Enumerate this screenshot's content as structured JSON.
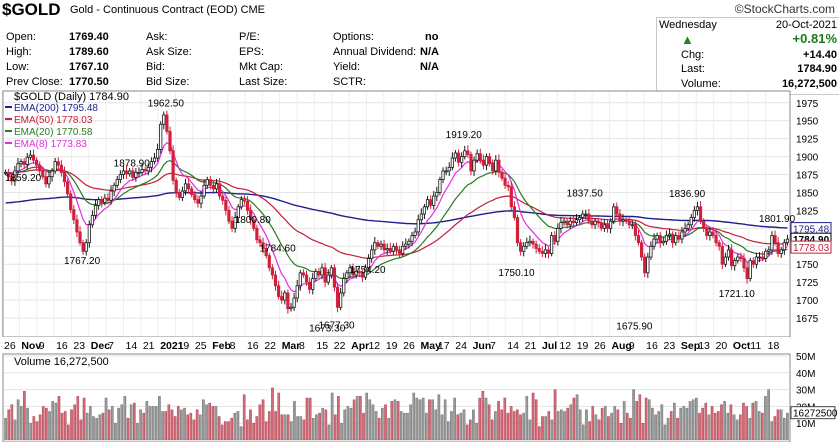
{
  "header": {
    "symbol": "$GOLD",
    "name": "Gold - Continuous Contract (EOD)",
    "exchange": "CME",
    "logo": "©StockCharts.com"
  },
  "quote_fields": [
    {
      "label": "Open:",
      "value": "1769.40"
    },
    {
      "label": "High:",
      "value": "1789.60"
    },
    {
      "label": "Low:",
      "value": "1767.10"
    },
    {
      "label": "Prev Close:",
      "value": "1770.50"
    },
    {
      "label": "Ask:",
      "value": ""
    },
    {
      "label": "Ask Size:",
      "value": ""
    },
    {
      "label": "Bid:",
      "value": ""
    },
    {
      "label": "Bid Size:",
      "value": ""
    },
    {
      "label": "P/E:",
      "value": ""
    },
    {
      "label": "EPS:",
      "value": ""
    },
    {
      "label": "Mkt Cap:",
      "value": ""
    },
    {
      "label": "Last Size:",
      "value": ""
    },
    {
      "label": "Options:",
      "value": "no"
    },
    {
      "label": "Annual Dividend:",
      "value": "N/A"
    },
    {
      "label": "Yield:",
      "value": "N/A"
    },
    {
      "label": "SCTR:",
      "value": ""
    }
  ],
  "summary": {
    "day": "Wednesday",
    "date": "20-Oct-2021",
    "change_pct": "+0.81%",
    "chg_label": "Chg:",
    "chg": "+14.40",
    "last_label": "Last:",
    "last": "1784.90",
    "volume_label": "Volume:",
    "volume": "16,272,500"
  },
  "colors": {
    "up": "#1a1a1a",
    "down": "#d0203c",
    "vol_down": "#d46a78",
    "vol_up": "#9a9a9a",
    "ema200": "#1e1e8c",
    "ema50": "#c41e3a",
    "ema20": "#2a7a1e",
    "ema8": "#e030e0"
  },
  "chart_data": [
    {
      "type": "line",
      "title": "$GOLD (Daily) 1784.90",
      "ylim": [
        1650,
        1990
      ],
      "yticks": [
        1675,
        1700,
        1725,
        1750,
        1775,
        1800,
        1825,
        1850,
        1875,
        1900,
        1925,
        1950,
        1975
      ],
      "x_ticks": [
        "26",
        "Nov",
        "9",
        "16",
        "23",
        "Dec",
        "7",
        "14",
        "21",
        "2021",
        "19",
        "25",
        "Feb",
        "8",
        "16",
        "22",
        "Mar",
        "8",
        "15",
        "22",
        "Apr",
        "12",
        "19",
        "26",
        "May",
        "17",
        "24",
        "Jun",
        "7",
        "14",
        "21",
        "Jul",
        "12",
        "19",
        "26",
        "Aug",
        "9",
        "16",
        "23",
        "Sep",
        "13",
        "20",
        "Oct",
        "11",
        "18"
      ],
      "legend": [
        {
          "label": "EMA(200) 1795.48",
          "color": "#1e1e8c"
        },
        {
          "label": "EMA(50) 1778.03",
          "color": "#c41e3a"
        },
        {
          "label": "EMA(20) 1770.58",
          "color": "#2a7a1e"
        },
        {
          "label": "EMA(8) 1773.83",
          "color": "#e030e0"
        }
      ],
      "close": [
        1878,
        1872,
        1866,
        1880,
        1890,
        1893,
        1889,
        1899,
        1902,
        1895,
        1888,
        1880,
        1872,
        1862,
        1872,
        1880,
        1893,
        1888,
        1878,
        1865,
        1848,
        1826,
        1812,
        1795,
        1780,
        1768,
        1780,
        1805,
        1818,
        1832,
        1840,
        1836,
        1842,
        1839,
        1852,
        1860,
        1868,
        1875,
        1880,
        1876,
        1880,
        1871,
        1878,
        1878,
        1882,
        1880,
        1885,
        1893,
        1898,
        1910,
        1945,
        1958,
        1935,
        1908,
        1867,
        1850,
        1843,
        1852,
        1862,
        1855,
        1847,
        1840,
        1835,
        1845,
        1860,
        1868,
        1860,
        1855,
        1862,
        1845,
        1839,
        1825,
        1810,
        1800,
        1815,
        1830,
        1840,
        1838,
        1825,
        1812,
        1800,
        1784,
        1780,
        1772,
        1762,
        1745,
        1735,
        1720,
        1705,
        1700,
        1710,
        1688,
        1690,
        1703,
        1720,
        1738,
        1735,
        1725,
        1715,
        1730,
        1740,
        1735,
        1745,
        1725,
        1735,
        1745,
        1718,
        1690,
        1710,
        1730,
        1738,
        1745,
        1735,
        1740,
        1738,
        1732,
        1745,
        1758,
        1770,
        1780,
        1775,
        1778,
        1770,
        1772,
        1768,
        1775,
        1770,
        1765,
        1775,
        1778,
        1782,
        1790,
        1795,
        1812,
        1820,
        1830,
        1840,
        1832,
        1845,
        1850,
        1868,
        1880,
        1880,
        1885,
        1898,
        1905,
        1892,
        1900,
        1908,
        1903,
        1880,
        1895,
        1904,
        1895,
        1888,
        1900,
        1890,
        1880,
        1895,
        1878,
        1870,
        1860,
        1858,
        1830,
        1815,
        1780,
        1768,
        1775,
        1780,
        1782,
        1778,
        1772,
        1768,
        1765,
        1770,
        1765,
        1790,
        1782,
        1800,
        1808,
        1810,
        1805,
        1810,
        1808,
        1812,
        1815,
        1820,
        1820,
        1810,
        1805,
        1810,
        1808,
        1800,
        1805,
        1800,
        1810,
        1830,
        1820,
        1810,
        1812,
        1810,
        1805,
        1805,
        1790,
        1780,
        1760,
        1738,
        1760,
        1775,
        1785,
        1790,
        1780,
        1782,
        1790,
        1792,
        1780,
        1790,
        1785,
        1795,
        1800,
        1805,
        1815,
        1825,
        1830,
        1810,
        1800,
        1790,
        1795,
        1790,
        1780,
        1775,
        1750,
        1760,
        1770,
        1748,
        1755,
        1760,
        1758,
        1745,
        1730,
        1755,
        1750,
        1760,
        1760,
        1758,
        1768,
        1770,
        1790,
        1780,
        1765,
        1770,
        1780,
        1785
      ],
      "annotations": [
        {
          "label": "1859.20",
          "value": 1859.2
        },
        {
          "label": "1767.20",
          "value": 1767.2
        },
        {
          "label": "1962.50",
          "value": 1962.5
        },
        {
          "label": "1878.90",
          "value": 1878.9
        },
        {
          "label": "1800.80",
          "value": 1800.8
        },
        {
          "label": "1784.60",
          "value": 1784.6
        },
        {
          "label": "1673.30",
          "value": 1673.3
        },
        {
          "label": "1754.20",
          "value": 1754.2
        },
        {
          "label": "1677.30",
          "value": 1677.3
        },
        {
          "label": "1919.20",
          "value": 1919.2
        },
        {
          "label": "1750.10",
          "value": 1750.1
        },
        {
          "label": "1837.50",
          "value": 1837.5
        },
        {
          "label": "1675.90",
          "value": 1675.9
        },
        {
          "label": "1836.90",
          "value": 1836.9
        },
        {
          "label": "1721.10",
          "value": 1721.1
        },
        {
          "label": "1801.90",
          "value": 1801.9
        }
      ],
      "right_tags": [
        "1795.48",
        "1784.90",
        "1778.03"
      ]
    },
    {
      "type": "bar",
      "title": "Volume 16,272,500",
      "ylim": [
        0,
        50
      ],
      "yticks_labels": [
        "50M",
        "40M",
        "30M",
        "20M",
        "10M"
      ],
      "yticks": [
        50,
        40,
        30,
        20,
        10
      ],
      "current_tag": "16272500",
      "values_millions": [
        13,
        18,
        21,
        12,
        24,
        20,
        29,
        19,
        10,
        14,
        11,
        15,
        20,
        19,
        17,
        23,
        22,
        26,
        16,
        17,
        9,
        18,
        21,
        26,
        12,
        25,
        16,
        20,
        14,
        13,
        15,
        16,
        25,
        18,
        20,
        10,
        19,
        21,
        26,
        13,
        21,
        22,
        10,
        18,
        16,
        23,
        20,
        20,
        20,
        26,
        17,
        17,
        21,
        18,
        14,
        20,
        18,
        19,
        15,
        16,
        12,
        18,
        15,
        24,
        21,
        22,
        20,
        20,
        14,
        9,
        11,
        11,
        13,
        16,
        17,
        8,
        27,
        12,
        18,
        10,
        14,
        21,
        24,
        11,
        17,
        31,
        17,
        28,
        15,
        15,
        15,
        11,
        23,
        14,
        14,
        12,
        25,
        25,
        13,
        15,
        16,
        19,
        18,
        9,
        28,
        15,
        26,
        10,
        18,
        20,
        19,
        24,
        26,
        26,
        16,
        28,
        24,
        21,
        17,
        13,
        19,
        21,
        13,
        23,
        24,
        23,
        17,
        16,
        16,
        21,
        28,
        25,
        24,
        25,
        16,
        24,
        24,
        18,
        27,
        15,
        24,
        11,
        17,
        25,
        15,
        16,
        18,
        9,
        12,
        18,
        10,
        25,
        29,
        25,
        21,
        12,
        17,
        23,
        18,
        25,
        16,
        20,
        17,
        18,
        15,
        16,
        26,
        12,
        28,
        24,
        8,
        14,
        14,
        17,
        12,
        30,
        17,
        18,
        17,
        19,
        21,
        25,
        27,
        18,
        9,
        18,
        11,
        20,
        15,
        12,
        19,
        20,
        14,
        16,
        20,
        18,
        10,
        23,
        16,
        13,
        30,
        23,
        27,
        10,
        25,
        24,
        19,
        15,
        17,
        21,
        9,
        13,
        17,
        22,
        13,
        19,
        20,
        19,
        23,
        24,
        25,
        16,
        19,
        22,
        15,
        20,
        16,
        17,
        21,
        23,
        16,
        21,
        15,
        12,
        15,
        22,
        20,
        13,
        22,
        23,
        17,
        16,
        26,
        30,
        11,
        14,
        18,
        18,
        13,
        16
      ]
    }
  ]
}
